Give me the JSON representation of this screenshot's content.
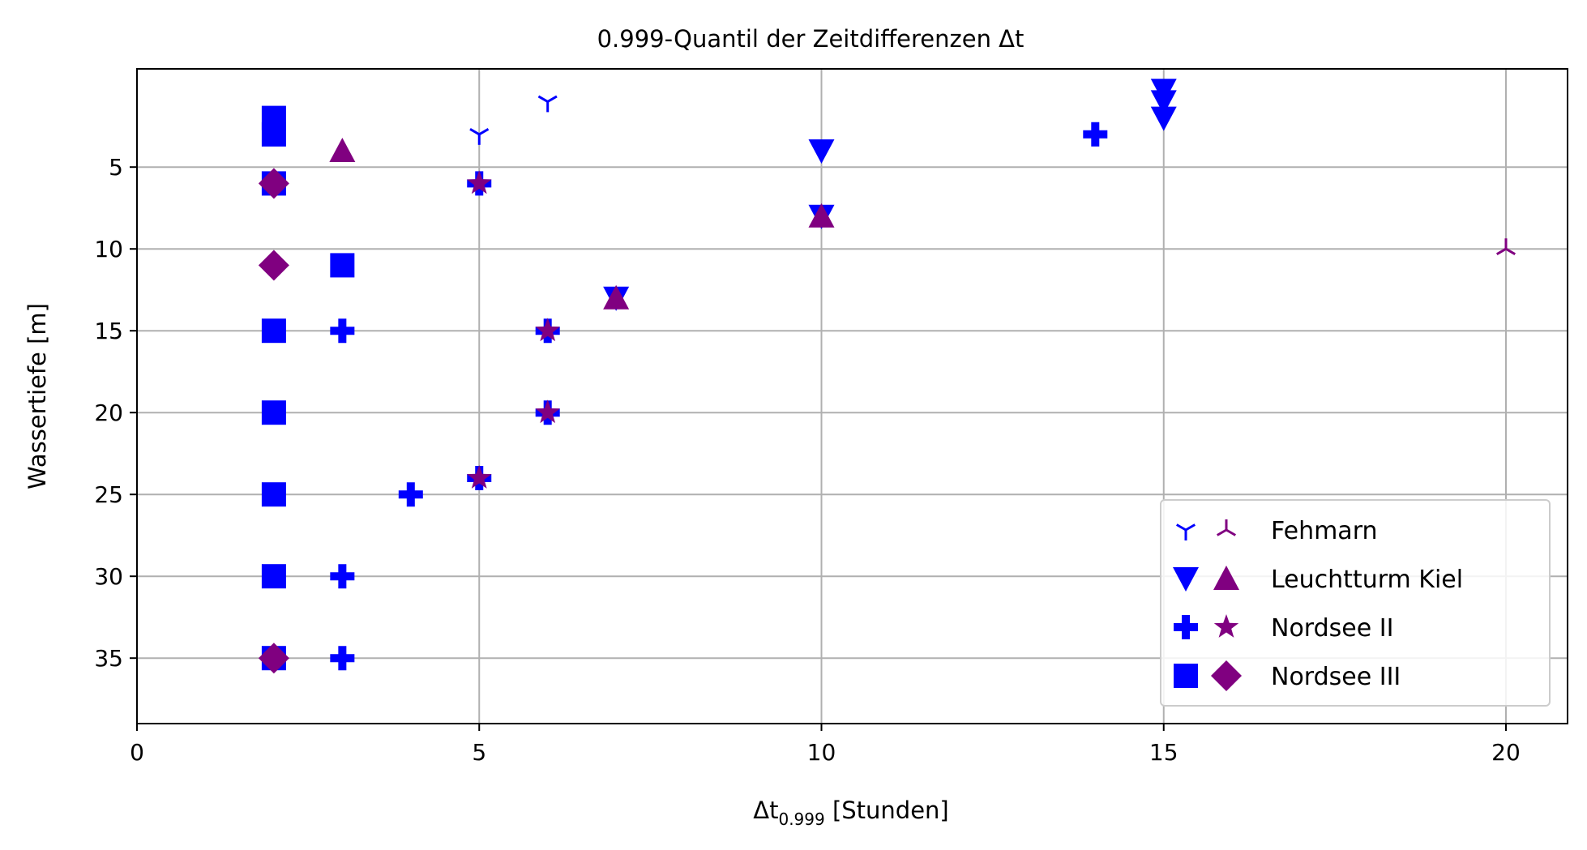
{
  "chart_data": {
    "type": "scatter",
    "title": "0.999-Quantil der Zeitdifferenzen Δt",
    "xlabel_main": "Δt",
    "xlabel_sub": "0.999",
    "xlabel_rest": " [Stunden]",
    "ylabel": "Wassertiefe [m]",
    "xlim": [
      0,
      20.9
    ],
    "ylim": [
      39,
      -1
    ],
    "y_inverted": true,
    "xticks": [
      0,
      5,
      10,
      15,
      20
    ],
    "yticks": [
      5,
      10,
      15,
      20,
      25,
      30,
      35
    ],
    "grid": true,
    "legend_position": "lower right",
    "colors": {
      "blue": "#0000ff",
      "purple": "#800080"
    },
    "legend": [
      {
        "label": "Fehmarn",
        "markers": [
          "tri-down",
          "tri-up"
        ]
      },
      {
        "label": "Leuchtturm Kiel",
        "markers": [
          "triangle-down",
          "triangle-up"
        ]
      },
      {
        "label": "Nordsee II",
        "markers": [
          "plus-filled",
          "star"
        ]
      },
      {
        "label": "Nordsee III",
        "markers": [
          "square",
          "diamond"
        ]
      }
    ],
    "series": [
      {
        "station": "Fehmarn",
        "marker": "tri-down",
        "color": "#0000ff",
        "points": [
          [
            6,
            1
          ],
          [
            5,
            3
          ]
        ]
      },
      {
        "station": "Fehmarn",
        "marker": "tri-up",
        "color": "#800080",
        "points": [
          [
            20,
            10
          ]
        ]
      },
      {
        "station": "Leuchtturm Kiel",
        "marker": "triangle-down",
        "color": "#0000ff",
        "points": [
          [
            15,
            0.3
          ],
          [
            15,
            1
          ],
          [
            15,
            2
          ],
          [
            10,
            4
          ],
          [
            10,
            8
          ],
          [
            7,
            13
          ]
        ]
      },
      {
        "station": "Leuchtturm Kiel",
        "marker": "triangle-up",
        "color": "#800080",
        "points": [
          [
            3,
            4
          ],
          [
            10,
            8
          ],
          [
            7,
            13
          ]
        ]
      },
      {
        "station": "Nordsee II",
        "marker": "plus-filled",
        "color": "#0000ff",
        "points": [
          [
            14,
            3
          ],
          [
            3,
            15
          ],
          [
            4,
            25
          ],
          [
            3,
            30
          ],
          [
            3,
            35
          ],
          [
            5,
            6
          ],
          [
            6,
            15
          ],
          [
            6,
            20
          ],
          [
            5,
            24
          ]
        ]
      },
      {
        "station": "Nordsee II",
        "marker": "star",
        "color": "#800080",
        "points": [
          [
            5,
            6
          ],
          [
            6,
            15
          ],
          [
            6,
            20
          ],
          [
            5,
            24
          ]
        ]
      },
      {
        "station": "Nordsee III",
        "marker": "square",
        "color": "#0000ff",
        "points": [
          [
            2,
            2
          ],
          [
            2,
            3
          ],
          [
            2,
            6
          ],
          [
            3,
            11
          ],
          [
            2,
            15
          ],
          [
            2,
            20
          ],
          [
            2,
            25
          ],
          [
            2,
            30
          ],
          [
            2,
            35
          ]
        ]
      },
      {
        "station": "Nordsee III",
        "marker": "diamond",
        "color": "#800080",
        "points": [
          [
            2,
            6
          ],
          [
            2,
            11
          ],
          [
            2,
            35
          ]
        ]
      }
    ]
  }
}
